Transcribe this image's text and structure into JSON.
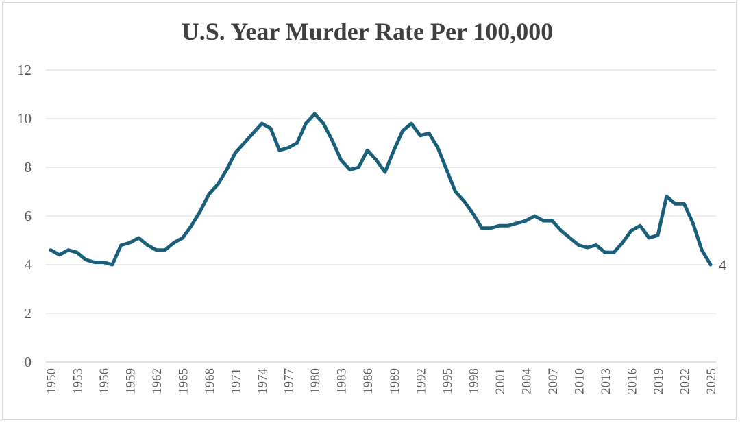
{
  "chart_data": {
    "type": "line",
    "title": "U.S. Year Murder Rate Per 100,000",
    "xlabel": "",
    "ylabel": "",
    "ylim": [
      0,
      12
    ],
    "yticks": [
      0,
      2,
      4,
      6,
      8,
      10,
      12
    ],
    "grid": true,
    "legend": "none",
    "x_tick_labels": [
      "1950",
      "1953",
      "1956",
      "1959",
      "1962",
      "1965",
      "1968",
      "1971",
      "1974",
      "1977",
      "1980",
      "1983",
      "1986",
      "1989",
      "1992",
      "1995",
      "1998",
      "2001",
      "2004",
      "2007",
      "2010",
      "2013",
      "2016",
      "2019",
      "2022",
      "2025"
    ],
    "end_label": "4",
    "series": [
      {
        "name": "Murder Rate",
        "color": "#1a5f7a",
        "x": [
          1950,
          1951,
          1952,
          1953,
          1954,
          1955,
          1956,
          1957,
          1958,
          1959,
          1960,
          1961,
          1962,
          1963,
          1964,
          1965,
          1966,
          1967,
          1968,
          1969,
          1970,
          1971,
          1972,
          1973,
          1974,
          1975,
          1976,
          1977,
          1978,
          1979,
          1980,
          1981,
          1982,
          1983,
          1984,
          1985,
          1986,
          1987,
          1988,
          1989,
          1990,
          1991,
          1992,
          1993,
          1994,
          1995,
          1996,
          1997,
          1998,
          1999,
          2000,
          2001,
          2002,
          2003,
          2004,
          2005,
          2006,
          2007,
          2008,
          2009,
          2010,
          2011,
          2012,
          2013,
          2014,
          2015,
          2016,
          2017,
          2018,
          2019,
          2020,
          2021,
          2022,
          2023,
          2024,
          2025
        ],
        "values": [
          4.6,
          4.4,
          4.6,
          4.5,
          4.2,
          4.1,
          4.1,
          4.0,
          4.8,
          4.9,
          5.1,
          4.8,
          4.6,
          4.6,
          4.9,
          5.1,
          5.6,
          6.2,
          6.9,
          7.3,
          7.9,
          8.6,
          9.0,
          9.4,
          9.8,
          9.6,
          8.7,
          8.8,
          9.0,
          9.8,
          10.2,
          9.8,
          9.1,
          8.3,
          7.9,
          8.0,
          8.7,
          8.3,
          7.8,
          8.7,
          9.5,
          9.8,
          9.3,
          9.4,
          8.8,
          7.9,
          7.0,
          6.6,
          6.1,
          5.5,
          5.5,
          5.6,
          5.6,
          5.7,
          5.8,
          6.0,
          5.8,
          5.8,
          5.4,
          5.1,
          4.8,
          4.7,
          4.8,
          4.5,
          4.5,
          4.9,
          5.4,
          5.6,
          5.1,
          5.2,
          6.8,
          6.5,
          6.5,
          5.7,
          4.6,
          4.0
        ]
      }
    ]
  }
}
